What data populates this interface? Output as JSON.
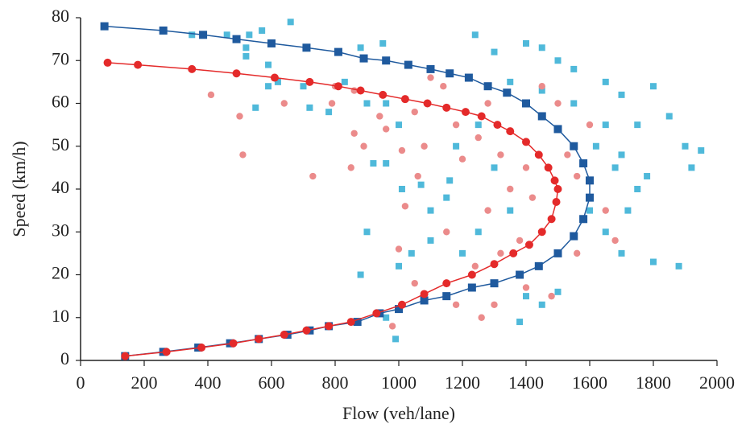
{
  "chart_data": {
    "type": "scatter",
    "x_label": "Flow (veh/lane)",
    "y_label": "Speed (km/h)",
    "xlim": [
      0,
      2000
    ],
    "xticks": [
      0,
      200,
      400,
      600,
      800,
      1000,
      1200,
      1400,
      1600,
      1800,
      2000
    ],
    "ylim": [
      0,
      80
    ],
    "yticks": [
      0,
      10,
      20,
      30,
      40,
      50,
      60,
      70,
      80
    ],
    "grid": false,
    "series": [
      {
        "color": "#4fb9da",
        "marker": "square",
        "line": false,
        "x": [
          350,
          460,
          530,
          570,
          660,
          520,
          520,
          590,
          620,
          590,
          550,
          700,
          720,
          780,
          830,
          880,
          950,
          900,
          960,
          1000,
          920,
          960,
          1010,
          1070,
          900,
          880,
          1000,
          1040,
          1100,
          1160,
          1180,
          1240,
          1300,
          1400,
          1450,
          1500,
          1550,
          1650,
          1700,
          1750,
          1800,
          1850,
          1900,
          1950,
          1920,
          1880,
          1800,
          1700,
          1650,
          1750,
          1700,
          1650,
          1550,
          1450,
          1350,
          1300,
          1350,
          1250,
          1200,
          1400,
          1380,
          1450,
          1500,
          990,
          960,
          1100,
          1150,
          1250,
          1600,
          1620,
          1680,
          1720,
          1780
        ],
        "values": [
          76,
          76,
          76,
          77,
          79,
          73,
          71,
          69,
          65,
          64,
          59,
          64,
          59,
          58,
          65,
          73,
          74,
          60,
          60,
          55,
          46,
          46,
          40,
          41,
          30,
          20,
          22,
          25,
          35,
          42,
          50,
          76,
          72,
          74,
          73,
          70,
          68,
          65,
          62,
          55,
          64,
          57,
          50,
          49,
          45,
          22,
          23,
          25,
          30,
          40,
          48,
          55,
          60,
          63,
          65,
          45,
          35,
          30,
          25,
          15,
          9,
          13,
          16,
          5,
          10,
          28,
          38,
          55,
          35,
          50,
          45,
          35,
          43
        ]
      },
      {
        "color": "#eb8b8b",
        "marker": "circle",
        "line": false,
        "x": [
          410,
          500,
          510,
          730,
          640,
          790,
          800,
          860,
          860,
          850,
          940,
          960,
          1010,
          1020,
          1060,
          1050,
          1100,
          1140,
          1180,
          1200,
          1250,
          1280,
          1320,
          1350,
          1400,
          1420,
          1450,
          1380,
          1320,
          1240,
          1000,
          980,
          1050,
          1180,
          1260,
          1300,
          1400,
          1480,
          1560,
          1650,
          1680,
          1560,
          1600,
          1500,
          1450,
          890,
          1080,
          1150,
          1280,
          1530
        ],
        "values": [
          62,
          57,
          48,
          43,
          60,
          60,
          64,
          63,
          53,
          45,
          57,
          54,
          49,
          36,
          43,
          58,
          66,
          64,
          55,
          47,
          52,
          60,
          48,
          40,
          45,
          38,
          30,
          28,
          25,
          22,
          26,
          8,
          18,
          13,
          10,
          13,
          17,
          15,
          25,
          35,
          28,
          43,
          55,
          60,
          64,
          50,
          50,
          30,
          35,
          48
        ]
      },
      {
        "color": "#1f5a9e",
        "marker": "square",
        "line": true,
        "x": [
          75,
          260,
          385,
          490,
          600,
          710,
          810,
          890,
          960,
          1030,
          1100,
          1160,
          1220,
          1280,
          1340,
          1400,
          1450,
          1500,
          1550,
          1580,
          1600,
          1600,
          1580,
          1550,
          1500,
          1440,
          1380,
          1300,
          1230,
          1150,
          1080,
          1000,
          940,
          870,
          780,
          720,
          650,
          560,
          470,
          370,
          260,
          140
        ],
        "values": [
          78,
          77,
          76,
          75,
          74,
          73,
          72,
          70.5,
          70,
          69,
          68,
          67,
          66,
          64,
          62.5,
          60,
          57,
          54,
          50,
          46,
          42,
          38,
          33,
          29,
          25,
          22,
          20,
          18,
          17,
          15,
          14,
          12,
          11,
          9,
          8,
          7,
          6,
          5,
          4,
          3,
          2,
          1
        ]
      },
      {
        "color": "#e42a2a",
        "marker": "circle",
        "line": true,
        "x": [
          85,
          180,
          350,
          490,
          610,
          720,
          810,
          880,
          950,
          1020,
          1090,
          1150,
          1210,
          1260,
          1310,
          1350,
          1400,
          1440,
          1470,
          1490,
          1500,
          1495,
          1480,
          1450,
          1410,
          1360,
          1300,
          1230,
          1150,
          1080,
          1010,
          930,
          850,
          780,
          710,
          640,
          560,
          480,
          380,
          270,
          140
        ],
        "values": [
          69.5,
          69,
          68,
          67,
          66,
          65,
          64,
          63,
          62,
          61,
          60,
          59,
          58,
          57,
          55,
          53.5,
          51,
          48,
          45,
          42,
          40,
          37,
          33,
          30,
          27,
          25,
          22.5,
          20,
          18,
          15.5,
          13,
          11,
          9,
          8,
          7,
          6,
          5,
          4,
          3,
          2,
          1
        ]
      }
    ]
  }
}
